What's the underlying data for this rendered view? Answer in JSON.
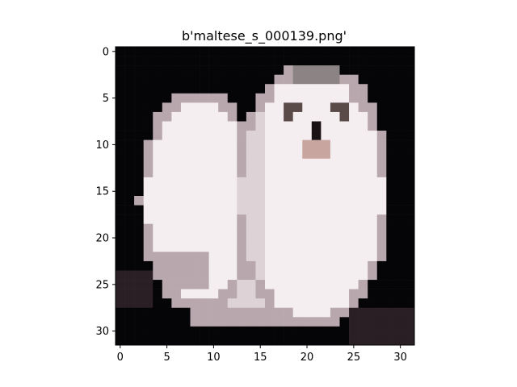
{
  "figure": {
    "title": "b'maltese_s_000139.png'"
  },
  "axes": {
    "x": {
      "ticks": [
        0,
        5,
        10,
        15,
        20,
        25,
        30
      ],
      "range": [
        -0.5,
        31.5
      ]
    },
    "y": {
      "ticks": [
        0,
        5,
        10,
        15,
        20,
        25,
        30
      ],
      "range": [
        -0.5,
        31.5
      ]
    }
  },
  "image": {
    "description_tag": "pixelated photo of two white maltese dogs on a black background",
    "grid_size": [
      32,
      32
    ],
    "colors": {
      "background": "#050508",
      "shadow": "#2a1f24",
      "fur_light": "#f4eef0",
      "fur_mid": "#ddd2d6",
      "fur_shade": "#b8a8ad",
      "nose": "#1a1114",
      "eye": "#5a4a48",
      "ear_gray": "#8c8484",
      "pink": "#c9a5a0"
    }
  }
}
